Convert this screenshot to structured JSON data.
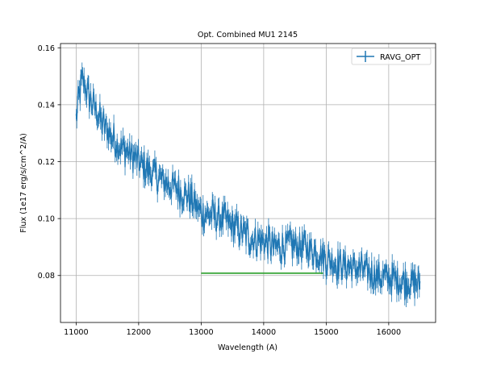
{
  "chart_data": {
    "type": "line",
    "title": "Opt. Combined MU1 2145",
    "xlabel": "Wavelength (A)",
    "ylabel": "Flux (1e17 erg/s/cm^2/A)",
    "xlim": [
      10750,
      16750
    ],
    "ylim": [
      0.0635,
      0.1615
    ],
    "xticks": [
      11000,
      12000,
      13000,
      14000,
      15000,
      16000
    ],
    "xtick_labels": [
      "11000",
      "12000",
      "13000",
      "14000",
      "15000",
      "16000"
    ],
    "yticks": [
      0.08,
      0.1,
      0.12,
      0.14,
      0.16
    ],
    "ytick_labels": [
      "0.08",
      "0.10",
      "0.12",
      "0.14",
      "0.16"
    ],
    "grid": true,
    "legend_position": "top-right",
    "series": [
      {
        "name": "RAVG_OPT",
        "color": "#1f77b4",
        "style": "errorbar-line",
        "x_start": 11000,
        "x_end": 16500,
        "trend": [
          [
            11000,
            0.135
          ],
          [
            11050,
            0.143
          ],
          [
            11100,
            0.149
          ],
          [
            11200,
            0.143
          ],
          [
            11300,
            0.139
          ],
          [
            11400,
            0.134
          ],
          [
            11500,
            0.131
          ],
          [
            11600,
            0.128
          ],
          [
            11700,
            0.125
          ],
          [
            11800,
            0.124
          ],
          [
            11900,
            0.122
          ],
          [
            12000,
            0.12
          ],
          [
            12100,
            0.118
          ],
          [
            12200,
            0.116
          ],
          [
            12300,
            0.115
          ],
          [
            12400,
            0.113
          ],
          [
            12500,
            0.112
          ],
          [
            12600,
            0.111
          ],
          [
            12700,
            0.109
          ],
          [
            12800,
            0.108
          ],
          [
            12900,
            0.105
          ],
          [
            13000,
            0.102
          ],
          [
            13200,
            0.101
          ],
          [
            13400,
            0.099
          ],
          [
            13600,
            0.096
          ],
          [
            13800,
            0.093
          ],
          [
            14000,
            0.092
          ],
          [
            14200,
            0.09
          ],
          [
            14400,
            0.091
          ],
          [
            14600,
            0.09
          ],
          [
            14800,
            0.089
          ],
          [
            15000,
            0.086
          ],
          [
            15200,
            0.084
          ],
          [
            15400,
            0.083
          ],
          [
            15600,
            0.082
          ],
          [
            15800,
            0.08
          ],
          [
            16000,
            0.079
          ],
          [
            16200,
            0.078
          ],
          [
            16400,
            0.0775
          ],
          [
            16500,
            0.077
          ]
        ]
      },
      {
        "name": "",
        "color": "#2ca02c",
        "style": "horizontal-segment",
        "x": [
          13000,
          14950
        ],
        "y": [
          0.0808,
          0.0808
        ]
      }
    ]
  }
}
